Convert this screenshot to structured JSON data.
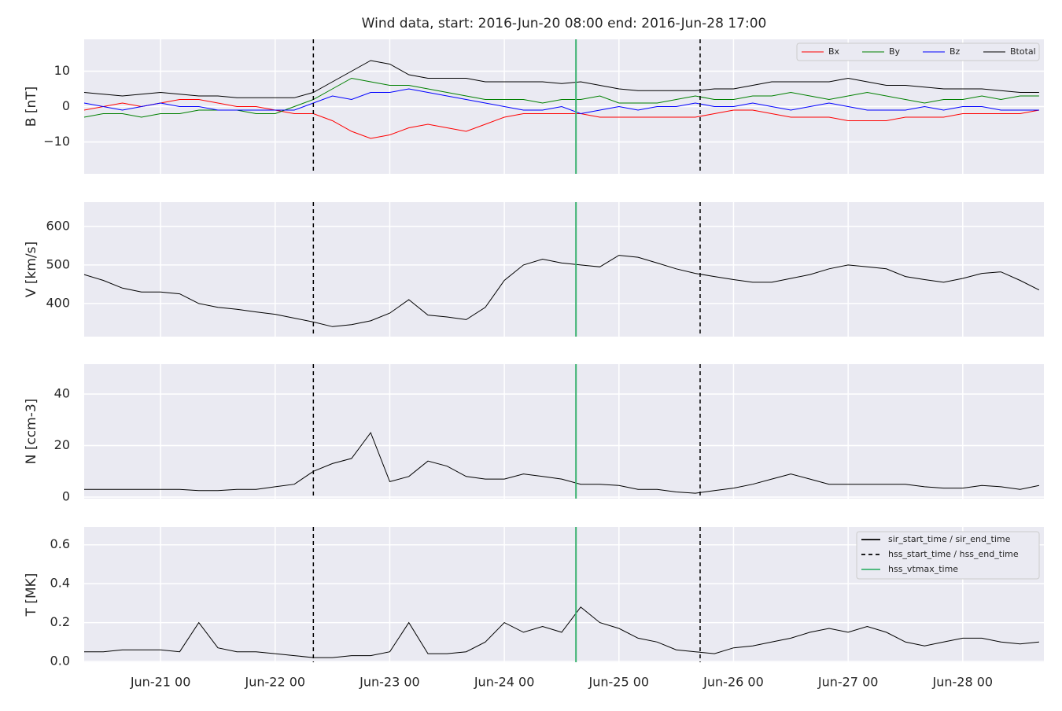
{
  "chart_data": [
    {
      "type": "line",
      "title": "Wind data, start: 2016-Jun-20 08:00  end: 2016-Jun-28 17:00",
      "ylabel": "B [nT]",
      "x": [
        "Jun-20 08",
        "Jun-20 12",
        "Jun-20 16",
        "Jun-20 20",
        "Jun-21 00",
        "Jun-21 04",
        "Jun-21 08",
        "Jun-21 12",
        "Jun-21 16",
        "Jun-21 20",
        "Jun-22 00",
        "Jun-22 04",
        "Jun-22 08",
        "Jun-22 12",
        "Jun-22 16",
        "Jun-22 20",
        "Jun-23 00",
        "Jun-23 04",
        "Jun-23 08",
        "Jun-23 12",
        "Jun-23 16",
        "Jun-23 20",
        "Jun-24 00",
        "Jun-24 04",
        "Jun-24 08",
        "Jun-24 12",
        "Jun-24 16",
        "Jun-24 20",
        "Jun-25 00",
        "Jun-25 04",
        "Jun-25 08",
        "Jun-25 12",
        "Jun-25 16",
        "Jun-25 20",
        "Jun-26 00",
        "Jun-26 04",
        "Jun-26 08",
        "Jun-26 12",
        "Jun-26 16",
        "Jun-26 20",
        "Jun-27 00",
        "Jun-27 04",
        "Jun-27 08",
        "Jun-27 12",
        "Jun-27 16",
        "Jun-27 20",
        "Jun-28 00",
        "Jun-28 04",
        "Jun-28 08",
        "Jun-28 12",
        "Jun-28 16"
      ],
      "series": [
        {
          "name": "Bx",
          "color": "#ff0000",
          "values": [
            -1,
            0,
            1,
            0,
            1,
            2,
            2,
            1,
            0,
            0,
            -1,
            -2,
            -2,
            -4,
            -7,
            -9,
            -8,
            -6,
            -5,
            -6,
            -7,
            -5,
            -3,
            -2,
            -2,
            -2,
            -2,
            -3,
            -3,
            -3,
            -3,
            -3,
            -3,
            -2,
            -1,
            -1,
            -2,
            -3,
            -3,
            -3,
            -4,
            -4,
            -4,
            -3,
            -3,
            -3,
            -2,
            -2,
            -2,
            -2,
            -1
          ]
        },
        {
          "name": "By",
          "color": "#008000",
          "values": [
            -3,
            -2,
            -2,
            -3,
            -2,
            -2,
            -1,
            -1,
            -1,
            -2,
            -2,
            0,
            2,
            5,
            8,
            7,
            6,
            6,
            5,
            4,
            3,
            2,
            2,
            2,
            1,
            2,
            2,
            3,
            1,
            1,
            1,
            2,
            3,
            2,
            2,
            3,
            3,
            4,
            3,
            2,
            3,
            4,
            3,
            2,
            1,
            2,
            2,
            3,
            2,
            3,
            3
          ]
        },
        {
          "name": "Bz",
          "color": "#0000ff",
          "values": [
            1,
            0,
            -1,
            0,
            1,
            0,
            0,
            -1,
            -1,
            -1,
            -1,
            -1,
            1,
            3,
            2,
            4,
            4,
            5,
            4,
            3,
            2,
            1,
            0,
            -1,
            -1,
            0,
            -2,
            -1,
            0,
            -1,
            0,
            0,
            1,
            0,
            0,
            1,
            0,
            -1,
            0,
            1,
            0,
            -1,
            -1,
            -1,
            0,
            -1,
            0,
            0,
            -1,
            -1,
            -1
          ]
        },
        {
          "name": "Btotal",
          "color": "#000000",
          "values": [
            4,
            3.5,
            3,
            3.5,
            4,
            3.5,
            3,
            3,
            2.5,
            2.5,
            2.5,
            2.5,
            4,
            7,
            10,
            13,
            12,
            9,
            8,
            8,
            8,
            7,
            7,
            7,
            7,
            6.5,
            7,
            6,
            5,
            4.5,
            4.5,
            4.5,
            4.5,
            5,
            5,
            6,
            7,
            7,
            7,
            7,
            8,
            7,
            6,
            6,
            5.5,
            5,
            5,
            5,
            4.5,
            4,
            4
          ]
        }
      ],
      "xlim": [
        "Jun-20 08",
        "Jun-28 17"
      ],
      "xticks": [
        "Jun-21 00",
        "Jun-22 00",
        "Jun-23 00",
        "Jun-24 00",
        "Jun-25 00",
        "Jun-26 00",
        "Jun-27 00",
        "Jun-28 00"
      ],
      "ylim": [
        -19,
        19
      ],
      "yticks": [
        {
          "value": -10,
          "label": "−10"
        },
        0,
        10
      ],
      "grid": true,
      "legend": "upper right",
      "events": [
        {
          "style": "dashed",
          "color": "#000000",
          "x": [
            "Jun-22 08",
            "Jun-25 17"
          ]
        },
        {
          "style": "solid",
          "color": "#3cb371",
          "x": [
            "Jun-24 15"
          ]
        }
      ]
    },
    {
      "type": "line",
      "ylabel": "V [km/s]",
      "x": [
        "Jun-20 08",
        "Jun-20 12",
        "Jun-20 16",
        "Jun-20 20",
        "Jun-21 00",
        "Jun-21 04",
        "Jun-21 08",
        "Jun-21 12",
        "Jun-21 16",
        "Jun-21 20",
        "Jun-22 00",
        "Jun-22 04",
        "Jun-22 08",
        "Jun-22 12",
        "Jun-22 16",
        "Jun-22 20",
        "Jun-23 00",
        "Jun-23 04",
        "Jun-23 08",
        "Jun-23 12",
        "Jun-23 16",
        "Jun-23 20",
        "Jun-24 00",
        "Jun-24 04",
        "Jun-24 08",
        "Jun-24 12",
        "Jun-24 16",
        "Jun-24 20",
        "Jun-25 00",
        "Jun-25 04",
        "Jun-25 08",
        "Jun-25 12",
        "Jun-25 16",
        "Jun-25 20",
        "Jun-26 00",
        "Jun-26 04",
        "Jun-26 08",
        "Jun-26 12",
        "Jun-26 16",
        "Jun-26 20",
        "Jun-27 00",
        "Jun-27 04",
        "Jun-27 08",
        "Jun-27 12",
        "Jun-27 16",
        "Jun-27 20",
        "Jun-28 00",
        "Jun-28 04",
        "Jun-28 08",
        "Jun-28 12",
        "Jun-28 16"
      ],
      "series": [
        {
          "color": "#000000",
          "values": [
            475,
            460,
            440,
            430,
            430,
            425,
            400,
            390,
            385,
            378,
            372,
            362,
            352,
            340,
            345,
            355,
            375,
            410,
            370,
            365,
            358,
            390,
            460,
            500,
            515,
            505,
            500,
            495,
            525,
            520,
            505,
            490,
            478,
            470,
            462,
            455,
            455,
            465,
            475,
            490,
            500,
            495,
            490,
            470,
            462,
            455,
            465,
            478,
            482,
            460,
            435
          ]
        }
      ],
      "xlim": [
        "Jun-20 08",
        "Jun-28 17"
      ],
      "xticks": [
        "Jun-21 00",
        "Jun-22 00",
        "Jun-23 00",
        "Jun-24 00",
        "Jun-25 00",
        "Jun-26 00",
        "Jun-27 00",
        "Jun-28 00"
      ],
      "ylim": [
        314,
        663
      ],
      "yticks": [
        400,
        500,
        600
      ],
      "grid": true,
      "events": [
        {
          "style": "dashed",
          "color": "#000000",
          "x": [
            "Jun-22 08",
            "Jun-25 17"
          ]
        },
        {
          "style": "solid",
          "color": "#3cb371",
          "x": [
            "Jun-24 15"
          ]
        }
      ]
    },
    {
      "type": "line",
      "ylabel": "N [ccm-3]",
      "x": [
        "Jun-20 08",
        "Jun-20 12",
        "Jun-20 16",
        "Jun-20 20",
        "Jun-21 00",
        "Jun-21 04",
        "Jun-21 08",
        "Jun-21 12",
        "Jun-21 16",
        "Jun-21 20",
        "Jun-22 00",
        "Jun-22 04",
        "Jun-22 08",
        "Jun-22 12",
        "Jun-22 16",
        "Jun-22 20",
        "Jun-23 00",
        "Jun-23 04",
        "Jun-23 08",
        "Jun-23 12",
        "Jun-23 16",
        "Jun-23 20",
        "Jun-24 00",
        "Jun-24 04",
        "Jun-24 08",
        "Jun-24 12",
        "Jun-24 16",
        "Jun-24 20",
        "Jun-25 00",
        "Jun-25 04",
        "Jun-25 08",
        "Jun-25 12",
        "Jun-25 16",
        "Jun-25 20",
        "Jun-26 00",
        "Jun-26 04",
        "Jun-26 08",
        "Jun-26 12",
        "Jun-26 16",
        "Jun-26 20",
        "Jun-27 00",
        "Jun-27 04",
        "Jun-27 08",
        "Jun-27 12",
        "Jun-27 16",
        "Jun-27 20",
        "Jun-28 00",
        "Jun-28 04",
        "Jun-28 08",
        "Jun-28 12",
        "Jun-28 16"
      ],
      "series": [
        {
          "color": "#000000",
          "values": [
            3,
            3,
            3,
            3,
            3,
            3,
            2.5,
            2.5,
            3,
            3,
            4,
            5,
            10,
            13,
            15,
            25,
            6,
            8,
            14,
            12,
            8,
            7,
            7,
            9,
            8,
            7,
            5,
            5,
            4.5,
            3,
            3,
            2,
            1.5,
            2.5,
            3.5,
            5,
            7,
            9,
            7,
            5,
            5,
            5,
            5,
            5,
            4,
            3.5,
            3.5,
            4.5,
            4,
            3,
            4.5
          ]
        }
      ],
      "xlim": [
        "Jun-20 08",
        "Jun-28 17"
      ],
      "xticks": [
        "Jun-21 00",
        "Jun-22 00",
        "Jun-23 00",
        "Jun-24 00",
        "Jun-25 00",
        "Jun-26 00",
        "Jun-27 00",
        "Jun-28 00"
      ],
      "ylim": [
        -0.6,
        51.6
      ],
      "yticks": [
        0,
        20,
        40
      ],
      "grid": true,
      "events": [
        {
          "style": "dashed",
          "color": "#000000",
          "x": [
            "Jun-22 08",
            "Jun-25 17"
          ]
        },
        {
          "style": "solid",
          "color": "#3cb371",
          "x": [
            "Jun-24 15"
          ]
        }
      ]
    },
    {
      "type": "line",
      "ylabel": "T [MK]",
      "x": [
        "Jun-20 08",
        "Jun-20 12",
        "Jun-20 16",
        "Jun-20 20",
        "Jun-21 00",
        "Jun-21 04",
        "Jun-21 08",
        "Jun-21 12",
        "Jun-21 16",
        "Jun-21 20",
        "Jun-22 00",
        "Jun-22 04",
        "Jun-22 08",
        "Jun-22 12",
        "Jun-22 16",
        "Jun-22 20",
        "Jun-23 00",
        "Jun-23 04",
        "Jun-23 08",
        "Jun-23 12",
        "Jun-23 16",
        "Jun-23 20",
        "Jun-24 00",
        "Jun-24 04",
        "Jun-24 08",
        "Jun-24 12",
        "Jun-24 16",
        "Jun-24 20",
        "Jun-25 00",
        "Jun-25 04",
        "Jun-25 08",
        "Jun-25 12",
        "Jun-25 16",
        "Jun-25 20",
        "Jun-26 00",
        "Jun-26 04",
        "Jun-26 08",
        "Jun-26 12",
        "Jun-26 16",
        "Jun-26 20",
        "Jun-27 00",
        "Jun-27 04",
        "Jun-27 08",
        "Jun-27 12",
        "Jun-27 16",
        "Jun-27 20",
        "Jun-28 00",
        "Jun-28 04",
        "Jun-28 08",
        "Jun-28 12",
        "Jun-28 16"
      ],
      "series": [
        {
          "color": "#000000",
          "values": [
            0.05,
            0.05,
            0.06,
            0.06,
            0.06,
            0.05,
            0.2,
            0.07,
            0.05,
            0.05,
            0.04,
            0.03,
            0.02,
            0.02,
            0.03,
            0.03,
            0.05,
            0.2,
            0.04,
            0.04,
            0.05,
            0.1,
            0.2,
            0.15,
            0.18,
            0.15,
            0.28,
            0.2,
            0.17,
            0.12,
            0.1,
            0.06,
            0.05,
            0.04,
            0.07,
            0.08,
            0.1,
            0.12,
            0.15,
            0.17,
            0.15,
            0.18,
            0.15,
            0.1,
            0.08,
            0.1,
            0.12,
            0.12,
            0.1,
            0.09,
            0.1
          ]
        }
      ],
      "xlim": [
        "Jun-20 08",
        "Jun-28 17"
      ],
      "xticks": [
        "Jun-21 00",
        "Jun-22 00",
        "Jun-23 00",
        "Jun-24 00",
        "Jun-25 00",
        "Jun-26 00",
        "Jun-27 00",
        "Jun-28 00"
      ],
      "ylim": [
        -0.004,
        0.692
      ],
      "yticks": [
        {
          "value": 0,
          "label": "0.0"
        },
        0.2,
        0.4,
        0.6
      ],
      "grid": true,
      "legend": "upper right",
      "events": [
        {
          "name": "sir_start_time / sir_end_time",
          "style": "solid",
          "color": "#000000",
          "x": []
        },
        {
          "name": "hss_start_time / hss_end_time",
          "style": "dashed",
          "color": "#000000",
          "x": [
            "Jun-22 08",
            "Jun-25 17"
          ]
        },
        {
          "name": "hss_vtmax_time",
          "style": "solid",
          "color": "#3cb371",
          "x": [
            "Jun-24 15"
          ]
        }
      ]
    }
  ]
}
